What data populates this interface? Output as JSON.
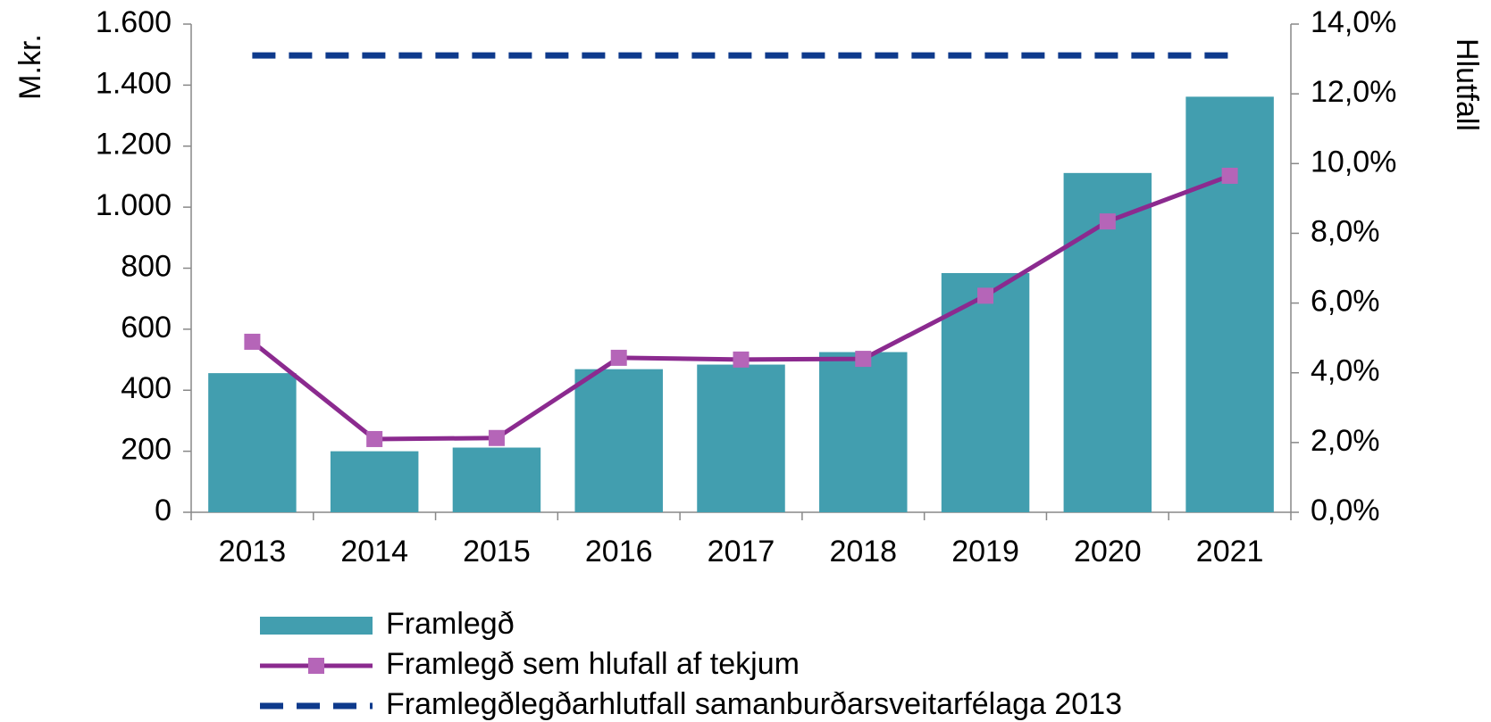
{
  "chart_data": {
    "type": "bar",
    "y_label": "M.kr.",
    "y2_label": "Hlutfall",
    "categories": [
      "2013",
      "2014",
      "2015",
      "2016",
      "2017",
      "2018",
      "2019",
      "2020",
      "2021"
    ],
    "series": [
      {
        "name": "Framlegð",
        "type": "bar",
        "color": "#429eaf",
        "values": [
          456,
          200,
          212,
          469,
          484,
          525,
          784,
          1112,
          1362
        ]
      },
      {
        "name": "Framlegð sem hlufall af tekjum",
        "type": "line",
        "axis": "y2",
        "color": "#8b2a8f",
        "marker_color": "#b565b8",
        "values": [
          4.89,
          2.1,
          2.13,
          4.43,
          4.38,
          4.4,
          6.21,
          8.34,
          9.65
        ]
      },
      {
        "name": "Framlegðlegðarhlutfall samanburðarsveitarfélaga 2013",
        "type": "line",
        "axis": "y2",
        "dashed": true,
        "color": "#0e3a8c",
        "values": [
          13.1,
          13.1,
          13.1,
          13.1,
          13.1,
          13.1,
          13.1,
          13.1,
          13.1
        ]
      }
    ],
    "ylim": [
      0,
      1600
    ],
    "yticks": [
      0,
      200,
      400,
      600,
      800,
      {
        "value": 1000,
        "label": "1.000"
      },
      {
        "value": 1200,
        "label": "1.200"
      },
      {
        "value": 1400,
        "label": "1.400"
      },
      {
        "value": 1600,
        "label": "1.600"
      }
    ],
    "y2lim": [
      0,
      14
    ],
    "y2ticks": [
      {
        "value": 0,
        "label": "0,0%"
      },
      {
        "value": 2,
        "label": "2,0%"
      },
      {
        "value": 4,
        "label": "4,0%"
      },
      {
        "value": 6,
        "label": "6,0%"
      },
      {
        "value": 8,
        "label": "8,0%"
      },
      {
        "value": 10,
        "label": "10,0%"
      },
      {
        "value": 12,
        "label": "12,0%"
      },
      {
        "value": 14,
        "label": "14,0%"
      }
    ],
    "grid": false,
    "legend": "bottom"
  }
}
